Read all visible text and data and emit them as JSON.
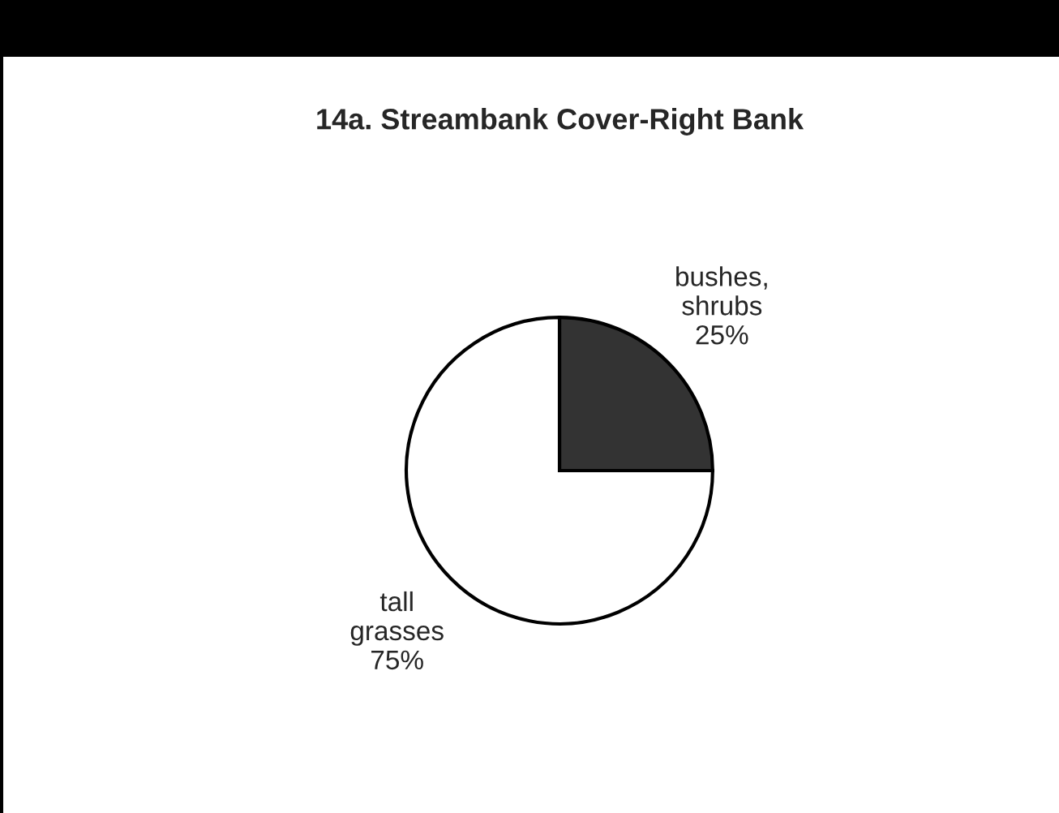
{
  "chart_data": {
    "type": "pie",
    "title": "14a. Streambank Cover-Right Bank",
    "categories": [
      "bushes,\nshrubs",
      "tall\ngrasses"
    ],
    "values": [
      25,
      75
    ],
    "value_labels": [
      "25%",
      "75%"
    ],
    "colors": [
      "#333333",
      "#ffffff"
    ]
  }
}
